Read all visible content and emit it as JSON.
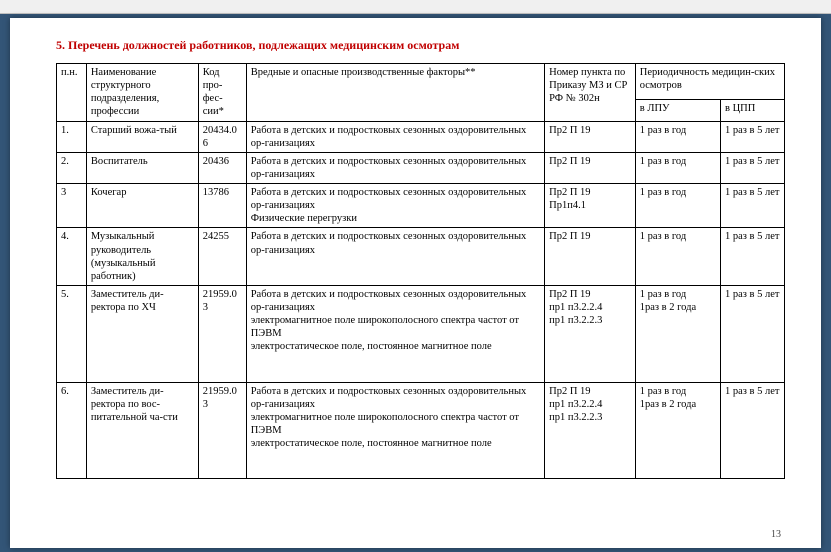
{
  "heading": "5. Перечень должностей работников, подлежащих медицинским осмотрам",
  "page_number": "13",
  "headers": {
    "h0": "п.н.",
    "h1": "Наименование структурного подразделения, профессии",
    "h2": "Код про-фес-сии*",
    "h3": "Вредные и опасные производственные факторы**",
    "h4": "Номер пункта по Приказу МЗ и СР РФ № 302н",
    "h5a": "Периодичность медицин-ских осмотров",
    "h5b": "в ЛПУ",
    "h5c": "в ЦПП"
  },
  "rows": [
    {
      "n": "1.",
      "name": "Старший вожа-тый",
      "code": "20434.06",
      "factor": "Работа в детских и подростковых сезонных оздоровительных ор-ганизациях",
      "punkt": "Пр2 П 19",
      "lpu": "1 раз в  год",
      "cpp": "1 раз в 5 лет"
    },
    {
      "n": "2.",
      "name": "Воспитатель",
      "code": "20436",
      "factor": "Работа в детских и подростковых сезонных оздоровительных ор-ганизациях",
      "punkt": "Пр2 П 19",
      "lpu": "1 раз в  год",
      "cpp": "1 раз в 5 лет"
    },
    {
      "n": "3",
      "name": "Кочегар",
      "code": "13786",
      "factor": "Работа в детских и подростковых сезонных оздоровительных ор-ганизациях\nФизические перегрузки",
      "punkt": "Пр2 П 19\nПр1п4.1",
      "lpu": "1 раз в  год",
      "cpp": "1 раз в 5 лет"
    },
    {
      "n": "4.",
      "name": "Музыкальный руководитель (музыкальный работник)",
      "code": "24255",
      "factor": "Работа в детских и подростковых сезонных оздоровительных ор-ганизациях",
      "punkt": "Пр2 П 19",
      "lpu": "1 раз в  год",
      "cpp": "1 раз в 5 лет"
    },
    {
      "n": "5.",
      "name": "Заместитель ди-ректора по ХЧ",
      "code": "21959.03",
      "factor": "Работа в детских и подростковых сезонных оздоровительных ор-ганизациях\nэлектромагнитное поле широкополосного спектра частот от ПЭВМ\nэлектростатическое поле, постоянное магнитное поле",
      "punkt": "Пр2 П 19\nпр1 п3.2.2.4\nпр1 п3.2.2.3",
      "lpu": "1 раз в  год\n1раз в 2 года",
      "cpp": "1 раз в 5 лет"
    },
    {
      "n": "6.",
      "name": "Заместитель ди-ректора по вос-питательной ча-сти",
      "code": "21959.03",
      "factor": "Работа в детских и подростковых сезонных оздоровительных ор-ганизациях\nэлектромагнитное поле широкополосного спектра частот от ПЭВМ\nэлектростатическое поле, постоянное магнитное поле",
      "punkt": "Пр2 П 19\nпр1 п3.2.2.4\nпр1 п3.2.2.3",
      "lpu": "1 раз в  год\n1раз в 2 года",
      "cpp": "1 раз в 5 лет"
    }
  ]
}
